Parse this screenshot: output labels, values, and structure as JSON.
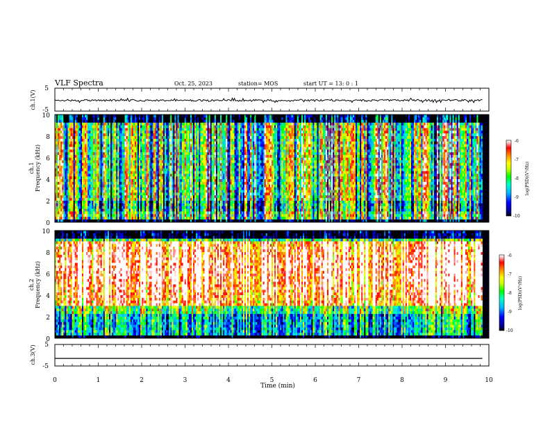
{
  "header": {
    "title": "VLF Spectra",
    "date": "Oct. 25, 2023",
    "station": "station= MOS",
    "start": "start  UT  =   13: 0   : 1"
  },
  "colors": {
    "axis": "#000000",
    "spectrogram_floor": "#000010",
    "colormap": [
      "#000000",
      "#00008b",
      "#0000ff",
      "#00b4ff",
      "#00ffc8",
      "#00ff00",
      "#c8ff00",
      "#ffff00",
      "#ff8c00",
      "#ff0000",
      "#ffc8c8",
      "#ffffff"
    ]
  },
  "chart_data": [
    {
      "type": "line",
      "name": "ch1-waveform",
      "ylabel": "ch.1(V)",
      "ylim": [
        -5,
        5
      ],
      "y_ticks": [
        "5",
        "-5"
      ],
      "xlim": [
        0,
        10
      ],
      "series": [
        {
          "name": "ch.1",
          "mean_value": -0.3,
          "noise_amplitude": 0.4
        }
      ],
      "data_end_min": 9.85
    },
    {
      "type": "heatmap",
      "name": "ch1-spectrogram",
      "ylabel_line1": "ch.1",
      "ylabel_line2": "Frequency (kHz)",
      "ylim": [
        0,
        10
      ],
      "y_ticks": [
        "10",
        "8",
        "6",
        "4",
        "2",
        "0"
      ],
      "xlim": [
        0,
        10
      ],
      "data_end_min": 9.85,
      "colorbar": {
        "label": "log(PSD)(V²/Hz)",
        "ticks": [
          "-6",
          "-7",
          "-8",
          "-9",
          "-10"
        ],
        "range": [
          -10,
          -6
        ]
      },
      "description_values": {
        "dominant_band_khz": [
          0.3,
          9.5
        ],
        "mean_log_psd": -7.6
      }
    },
    {
      "type": "heatmap",
      "name": "ch2-spectrogram",
      "ylabel_line1": "ch.2",
      "ylabel_line2": "Frequency (kHz)",
      "ylim": [
        0,
        10
      ],
      "y_ticks": [
        "10",
        "8",
        "6",
        "4",
        "2",
        "0"
      ],
      "xlim": [
        0,
        10
      ],
      "data_end_min": 9.85,
      "colorbar": {
        "label": "log(PSD)(V²/Hz)",
        "ticks": [
          "-6",
          "-7",
          "-8",
          "-9",
          "-10"
        ],
        "range": [
          -10,
          -6
        ]
      },
      "description_values": {
        "dominant_band_khz": [
          3,
          9
        ],
        "mean_log_psd": -7.2
      }
    },
    {
      "type": "line",
      "name": "ch3-waveform",
      "ylabel": "ch.3(V)",
      "ylim": [
        -5,
        5
      ],
      "y_ticks": [
        "5",
        "-5"
      ],
      "xlim": [
        0,
        10
      ],
      "series": [
        {
          "name": "ch.3",
          "mean_value": -1.5,
          "noise_amplitude": 0.0
        }
      ],
      "data_end_min": 9.85
    }
  ],
  "x_axis": {
    "label": "Time  (min)",
    "ticks": [
      "0",
      "1",
      "2",
      "3",
      "4",
      "5",
      "6",
      "7",
      "8",
      "9",
      "10"
    ],
    "range": [
      0,
      10
    ]
  }
}
